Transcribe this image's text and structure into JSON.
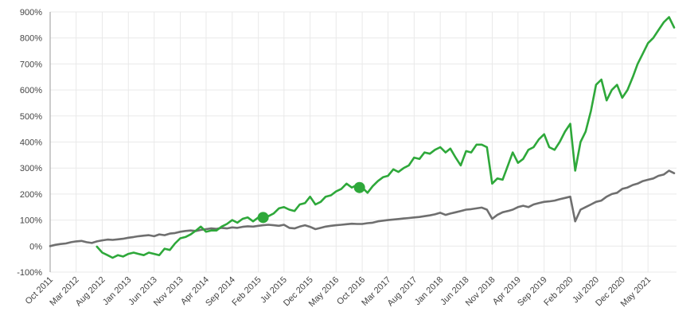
{
  "chart_data": {
    "type": "line",
    "title": "",
    "xlabel": "",
    "ylabel": "",
    "ylim": [
      -100,
      900
    ],
    "xlim": [
      "2011-10-01",
      "2021-10-15"
    ],
    "grid": true,
    "y_ticks": [
      -100,
      0,
      100,
      200,
      300,
      400,
      500,
      600,
      700,
      800,
      900
    ],
    "y_tick_labels": [
      "-100%",
      "0%",
      "100%",
      "200%",
      "300%",
      "400%",
      "500%",
      "600%",
      "700%",
      "800%",
      "900%"
    ],
    "x_ticks": [
      "2011-10-01",
      "2012-03-01",
      "2012-08-01",
      "2013-01-01",
      "2013-06-01",
      "2013-11-01",
      "2014-04-01",
      "2014-09-01",
      "2015-02-01",
      "2015-07-01",
      "2015-12-01",
      "2016-05-01",
      "2016-10-01",
      "2017-03-01",
      "2017-08-01",
      "2018-01-01",
      "2018-06-01",
      "2018-11-01",
      "2019-04-01",
      "2019-09-01",
      "2020-02-01",
      "2020-07-01",
      "2020-12-01",
      "2021-05-01"
    ],
    "x_tick_labels": [
      "Oct 2011",
      "Mar 2012",
      "Aug 2012",
      "Jan 2013",
      "Jun 2013",
      "Nov 2013",
      "Apr 2014",
      "Sep 2014",
      "Feb 2015",
      "Jul 2015",
      "Dec 2015",
      "May 2016",
      "Oct 2016",
      "Mar 2017",
      "Aug 2017",
      "Jan 2018",
      "Jun 2018",
      "Nov 2018",
      "Apr 2019",
      "Sep 2019",
      "Feb 2020",
      "Jul 2020",
      "Dec 2020",
      "May 2021"
    ],
    "series": [
      {
        "color": "#2ea83a",
        "x": [
          "2012-07-01",
          "2012-08-01",
          "2012-09-01",
          "2012-10-01",
          "2012-11-01",
          "2012-12-01",
          "2013-01-01",
          "2013-02-01",
          "2013-03-01",
          "2013-04-01",
          "2013-05-01",
          "2013-06-01",
          "2013-07-01",
          "2013-08-01",
          "2013-09-01",
          "2013-10-01",
          "2013-11-01",
          "2013-12-01",
          "2014-01-01",
          "2014-02-01",
          "2014-03-01",
          "2014-04-01",
          "2014-05-01",
          "2014-06-01",
          "2014-07-01",
          "2014-08-01",
          "2014-09-01",
          "2014-10-01",
          "2014-11-01",
          "2014-12-01",
          "2015-01-01",
          "2015-02-01",
          "2015-03-01",
          "2015-04-01",
          "2015-05-01",
          "2015-06-01",
          "2015-07-01",
          "2015-08-01",
          "2015-09-01",
          "2015-10-01",
          "2015-11-01",
          "2015-12-01",
          "2016-01-01",
          "2016-02-01",
          "2016-03-01",
          "2016-04-01",
          "2016-05-01",
          "2016-06-01",
          "2016-07-01",
          "2016-08-01",
          "2016-09-01",
          "2016-10-01",
          "2016-11-01",
          "2016-12-01",
          "2017-01-01",
          "2017-02-01",
          "2017-03-01",
          "2017-04-01",
          "2017-05-01",
          "2017-06-01",
          "2017-07-01",
          "2017-08-01",
          "2017-09-01",
          "2017-10-01",
          "2017-11-01",
          "2017-12-01",
          "2018-01-01",
          "2018-02-01",
          "2018-03-01",
          "2018-04-01",
          "2018-05-01",
          "2018-06-01",
          "2018-07-01",
          "2018-08-01",
          "2018-09-01",
          "2018-10-01",
          "2018-11-01",
          "2018-12-01",
          "2019-01-01",
          "2019-02-01",
          "2019-03-01",
          "2019-04-01",
          "2019-05-01",
          "2019-06-01",
          "2019-07-01",
          "2019-08-01",
          "2019-09-01",
          "2019-10-01",
          "2019-11-01",
          "2019-12-01",
          "2020-01-01",
          "2020-02-01",
          "2020-03-01",
          "2020-04-01",
          "2020-05-01",
          "2020-06-01",
          "2020-07-01",
          "2020-08-01",
          "2020-09-01",
          "2020-10-01",
          "2020-11-01",
          "2020-12-01",
          "2021-01-01",
          "2021-02-01",
          "2021-03-01",
          "2021-04-01",
          "2021-05-01",
          "2021-06-01",
          "2021-07-01",
          "2021-08-01",
          "2021-09-01",
          "2021-10-01"
        ],
        "values": [
          -2,
          -25,
          -35,
          -45,
          -35,
          -40,
          -30,
          -25,
          -30,
          -35,
          -25,
          -30,
          -35,
          -10,
          -15,
          10,
          30,
          35,
          45,
          60,
          75,
          55,
          60,
          60,
          75,
          85,
          100,
          90,
          105,
          110,
          95,
          110,
          120,
          115,
          125,
          145,
          150,
          140,
          135,
          160,
          165,
          190,
          160,
          170,
          190,
          195,
          210,
          220,
          240,
          225,
          235,
          225,
          205,
          230,
          250,
          265,
          270,
          295,
          285,
          300,
          310,
          340,
          335,
          360,
          355,
          370,
          380,
          360,
          375,
          340,
          310,
          365,
          360,
          390,
          390,
          380,
          240,
          260,
          255,
          310,
          360,
          320,
          335,
          370,
          380,
          410,
          430,
          380,
          370,
          400,
          440,
          470,
          290,
          400,
          440,
          520,
          620,
          640,
          560,
          600,
          620,
          570,
          600,
          650,
          700,
          740,
          780,
          800,
          830,
          860,
          880,
          840
        ]
      },
      {
        "color": "#6f6f6f",
        "x": [
          "2011-10-01",
          "2011-11-01",
          "2011-12-01",
          "2012-01-01",
          "2012-02-01",
          "2012-03-01",
          "2012-04-01",
          "2012-05-01",
          "2012-06-01",
          "2012-07-01",
          "2012-08-01",
          "2012-09-01",
          "2012-10-01",
          "2012-11-01",
          "2012-12-01",
          "2013-01-01",
          "2013-02-01",
          "2013-03-01",
          "2013-04-01",
          "2013-05-01",
          "2013-06-01",
          "2013-07-01",
          "2013-08-01",
          "2013-09-01",
          "2013-10-01",
          "2013-11-01",
          "2013-12-01",
          "2014-01-01",
          "2014-02-01",
          "2014-03-01",
          "2014-04-01",
          "2014-05-01",
          "2014-06-01",
          "2014-07-01",
          "2014-08-01",
          "2014-09-01",
          "2014-10-01",
          "2014-11-01",
          "2014-12-01",
          "2015-01-01",
          "2015-02-01",
          "2015-03-01",
          "2015-04-01",
          "2015-05-01",
          "2015-06-01",
          "2015-07-01",
          "2015-08-01",
          "2015-09-01",
          "2015-10-01",
          "2015-11-01",
          "2015-12-01",
          "2016-01-01",
          "2016-02-01",
          "2016-03-01",
          "2016-04-01",
          "2016-05-01",
          "2016-06-01",
          "2016-07-01",
          "2016-08-01",
          "2016-09-01",
          "2016-10-01",
          "2016-11-01",
          "2016-12-01",
          "2017-01-01",
          "2017-02-01",
          "2017-03-01",
          "2017-04-01",
          "2017-05-01",
          "2017-06-01",
          "2017-07-01",
          "2017-08-01",
          "2017-09-01",
          "2017-10-01",
          "2017-11-01",
          "2017-12-01",
          "2018-01-01",
          "2018-02-01",
          "2018-03-01",
          "2018-04-01",
          "2018-05-01",
          "2018-06-01",
          "2018-07-01",
          "2018-08-01",
          "2018-09-01",
          "2018-10-01",
          "2018-11-01",
          "2018-12-01",
          "2019-01-01",
          "2019-02-01",
          "2019-03-01",
          "2019-04-01",
          "2019-05-01",
          "2019-06-01",
          "2019-07-01",
          "2019-08-01",
          "2019-09-01",
          "2019-10-01",
          "2019-11-01",
          "2019-12-01",
          "2020-01-01",
          "2020-02-01",
          "2020-03-01",
          "2020-04-01",
          "2020-05-01",
          "2020-06-01",
          "2020-07-01",
          "2020-08-01",
          "2020-09-01",
          "2020-10-01",
          "2020-11-01",
          "2020-12-01",
          "2021-01-01",
          "2021-02-01",
          "2021-03-01",
          "2021-04-01",
          "2021-05-01",
          "2021-06-01",
          "2021-07-01",
          "2021-08-01",
          "2021-09-01",
          "2021-10-01"
        ],
        "values": [
          0,
          5,
          8,
          10,
          15,
          18,
          20,
          15,
          12,
          18,
          22,
          25,
          24,
          26,
          28,
          32,
          35,
          38,
          40,
          42,
          38,
          45,
          42,
          48,
          50,
          55,
          58,
          60,
          58,
          62,
          65,
          68,
          66,
          70,
          68,
          72,
          70,
          74,
          76,
          75,
          78,
          80,
          82,
          80,
          78,
          82,
          70,
          68,
          75,
          80,
          74,
          65,
          70,
          75,
          78,
          80,
          82,
          84,
          86,
          85,
          85,
          88,
          90,
          95,
          98,
          100,
          102,
          104,
          106,
          108,
          110,
          112,
          115,
          118,
          122,
          128,
          120,
          125,
          130,
          135,
          140,
          142,
          145,
          148,
          140,
          105,
          120,
          130,
          135,
          140,
          150,
          155,
          150,
          160,
          165,
          170,
          172,
          175,
          180,
          185,
          190,
          95,
          140,
          150,
          160,
          170,
          175,
          190,
          200,
          205,
          220,
          225,
          235,
          240,
          250,
          255,
          260,
          270,
          275,
          290,
          280
        ]
      }
    ],
    "markers": [
      {
        "x": "2015-03-01",
        "y": 110,
        "color": "#2ea83a"
      },
      {
        "x": "2016-09-15",
        "y": 225,
        "color": "#2ea83a"
      }
    ]
  }
}
